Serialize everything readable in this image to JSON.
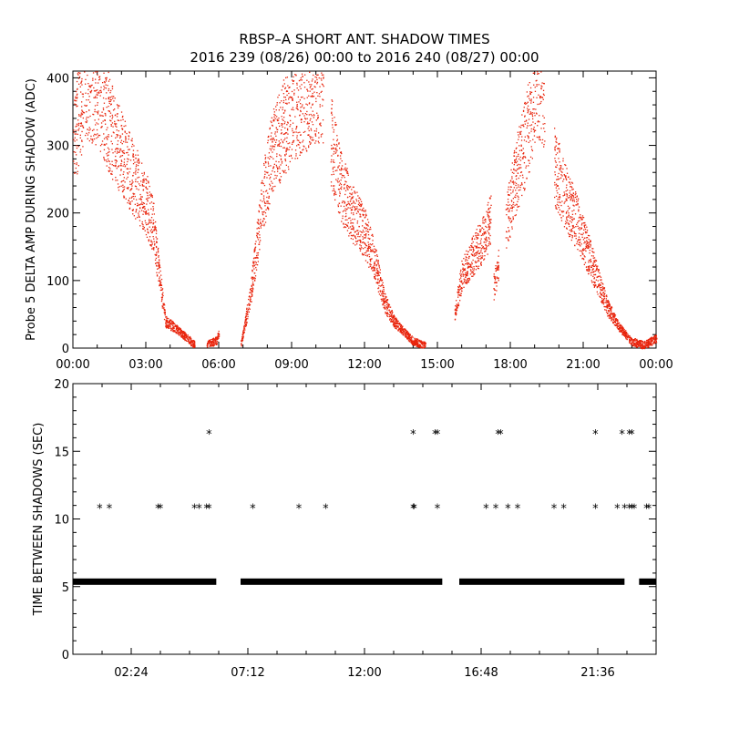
{
  "header": {
    "title": "RBSP–A SHORT ANT. SHADOW TIMES",
    "subtitle": "2016 239 (08/26) 00:00 to 2016 240 (08/27) 00:00"
  },
  "colors": {
    "points": "#e8240c",
    "stars": "#000000",
    "axes": "#000000"
  },
  "chart_data": [
    {
      "type": "scatter",
      "name": "delta-amp",
      "ylabel": "Probe 5 DELTA AMP DURING SHADOW (ADC)",
      "xlabel": "",
      "xlim_hours": [
        0,
        24
      ],
      "ylim": [
        0,
        410
      ],
      "xticks": [
        "00:00",
        "03:00",
        "06:00",
        "09:00",
        "12:00",
        "15:00",
        "18:00",
        "21:00",
        "00:00"
      ],
      "yticks": [
        0,
        100,
        200,
        300,
        400
      ],
      "series": [
        {
          "name": "orbit-1 decline",
          "x": [
            0.0,
            0.5,
            1.0,
            1.5,
            2.0,
            2.5,
            3.0,
            3.3,
            3.5,
            3.8,
            4.2,
            4.6,
            5.0
          ],
          "y": [
            300,
            400,
            380,
            330,
            290,
            250,
            215,
            180,
            120,
            40,
            30,
            18,
            5
          ]
        },
        {
          "name": "orbit-1 tail",
          "x": [
            5.5,
            5.9,
            6.0
          ],
          "y": [
            5,
            12,
            25
          ]
        },
        {
          "name": "orbit-2 rise",
          "x": [
            6.9,
            7.3,
            7.8,
            8.2,
            8.7,
            9.2,
            9.8,
            10.3
          ],
          "y": [
            5,
            80,
            220,
            290,
            330,
            360,
            380,
            390
          ]
        },
        {
          "name": "orbit-2 decline",
          "x": [
            10.6,
            11.0,
            11.5,
            12.0,
            12.4,
            12.8,
            13.2,
            13.6,
            14.0,
            14.5
          ],
          "y": [
            310,
            240,
            200,
            170,
            130,
            70,
            40,
            25,
            10,
            5
          ]
        },
        {
          "name": "orbit-3 rise",
          "x": [
            15.7,
            16.0,
            16.5,
            17.0,
            17.2
          ],
          "y": [
            50,
            110,
            140,
            170,
            200
          ]
        },
        {
          "name": "orbit-3 notch",
          "x": [
            17.3,
            17.5
          ],
          "y": [
            90,
            120
          ]
        },
        {
          "name": "orbit-3 peak",
          "x": [
            17.8,
            18.2,
            18.7,
            19.1,
            19.4
          ],
          "y": [
            180,
            250,
            320,
            400,
            380
          ]
        },
        {
          "name": "orbit-3 decline",
          "x": [
            19.8,
            20.3,
            20.8,
            21.2,
            21.6,
            22.0,
            22.5,
            23.0,
            23.5,
            24.0
          ],
          "y": [
            270,
            220,
            180,
            140,
            100,
            60,
            30,
            10,
            5,
            15
          ]
        }
      ]
    },
    {
      "type": "scatter",
      "name": "time-between-shadows",
      "ylabel": "TIME BETWEEN SHADOWS (SEC)",
      "xlabel": "",
      "xlim_hours": [
        0,
        24
      ],
      "ylim": [
        0,
        20
      ],
      "xticks": [
        "02:24",
        "07:12",
        "12:00",
        "16:48",
        "21:36"
      ],
      "yticks": [
        0,
        5,
        10,
        15,
        20
      ],
      "baseline": {
        "value": 5.4,
        "segments_hours": [
          [
            0.0,
            5.9
          ],
          [
            6.9,
            15.2
          ],
          [
            15.9,
            22.7
          ],
          [
            23.3,
            24.0
          ]
        ]
      },
      "points_x_hours": [
        1.1,
        1.5,
        3.5,
        3.6,
        5.0,
        5.2,
        5.5,
        5.6,
        7.4,
        9.3,
        10.4,
        14.0,
        14.05,
        15.0,
        17.0,
        17.4,
        17.9,
        18.3,
        19.8,
        20.2,
        21.5,
        22.4,
        22.7,
        22.9,
        23.0,
        23.1,
        23.6,
        23.7,
        5.6,
        14.0,
        14.9,
        15.0,
        17.5,
        17.6,
        21.5,
        22.6,
        22.9,
        23.0
      ],
      "points_y": [
        10.8,
        10.8,
        10.8,
        10.8,
        10.8,
        10.8,
        10.8,
        10.8,
        10.8,
        10.8,
        10.8,
        10.8,
        10.8,
        10.8,
        10.8,
        10.8,
        10.8,
        10.8,
        10.8,
        10.8,
        10.8,
        10.8,
        10.8,
        10.8,
        10.8,
        10.8,
        10.8,
        10.8,
        16.3,
        16.3,
        16.3,
        16.3,
        16.3,
        16.3,
        16.3,
        16.3,
        16.3,
        16.3
      ]
    }
  ]
}
